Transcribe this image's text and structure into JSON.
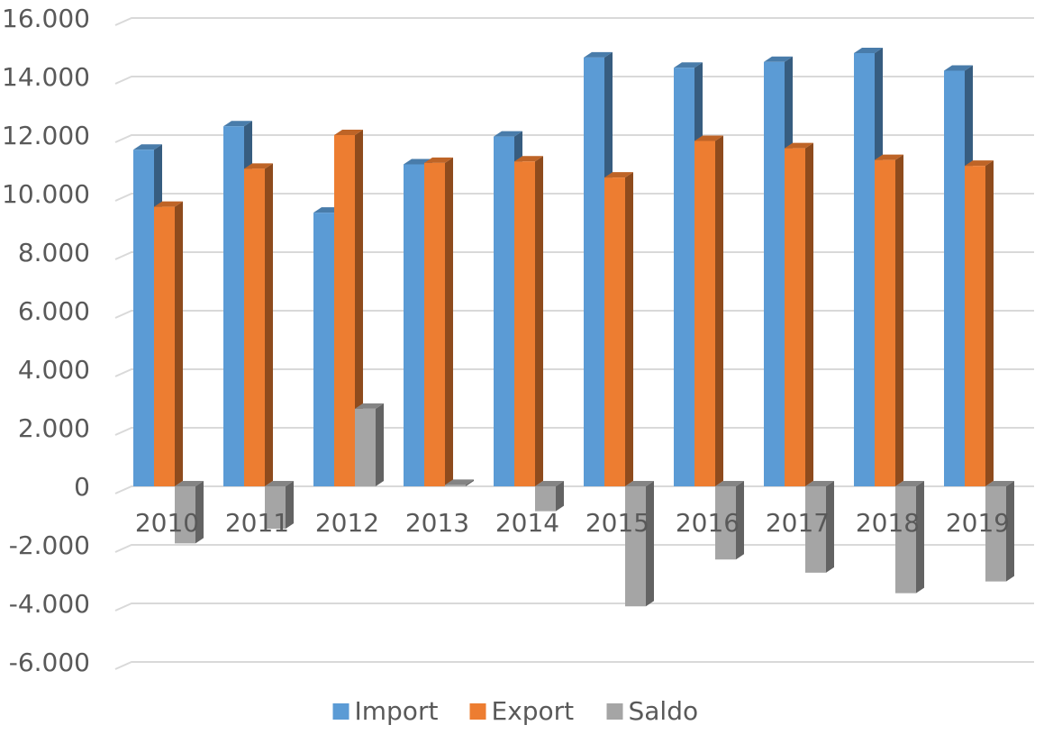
{
  "chart_data": {
    "type": "bar",
    "categories": [
      "2010",
      "2011",
      "2012",
      "2013",
      "2014",
      "2015",
      "2016",
      "2017",
      "2018",
      "2019"
    ],
    "series": [
      {
        "name": "Import",
        "color": "#5B9BD5",
        "values": [
          11500,
          12300,
          9350,
          11000,
          11950,
          14650,
          14300,
          14500,
          14800,
          14200
        ]
      },
      {
        "name": "Export",
        "color": "#ED7D31",
        "values": [
          9550,
          10850,
          12000,
          11050,
          11100,
          10550,
          11800,
          11550,
          11150,
          10950
        ]
      },
      {
        "name": "Saldo",
        "color": "#A5A5A5",
        "values": [
          -1950,
          -1450,
          2650,
          50,
          -850,
          -4100,
          -2500,
          -2950,
          -3650,
          -3250
        ]
      }
    ],
    "y_ticks": [
      "16.000",
      "14.000",
      "12.000",
      "10.000",
      "8.000",
      "6.000",
      "4.000",
      "2.000",
      "0",
      "-2.000",
      "-4.000",
      "-6.000"
    ],
    "ylim": [
      -6000,
      16000
    ],
    "grid": true,
    "legend_position": "bottom"
  }
}
